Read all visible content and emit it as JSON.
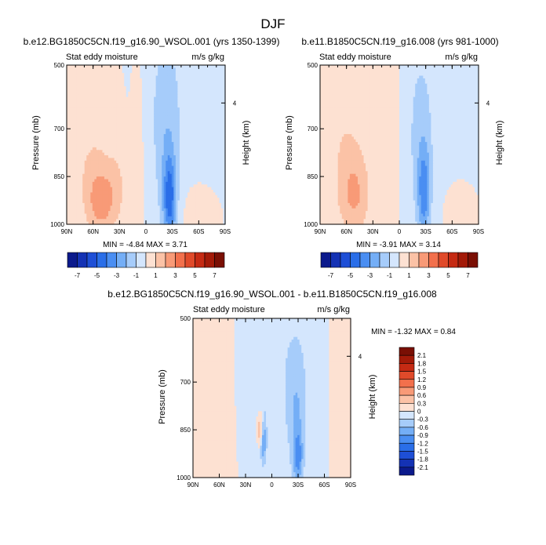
{
  "figure_title": "DJF",
  "chart_data": [
    {
      "type": "heatmap",
      "title": "b.e12.BG1850C5CN.f19_g16.90_WSOL.001 (yrs 1350-1399)",
      "subtitle_left": "Stat eddy moisture",
      "subtitle_right": "m/s g/kg",
      "xlabel": "",
      "ylabel": "Pressure (mb)",
      "ylabel_right": "Height (km)",
      "x_ticks": [
        "90N",
        "60N",
        "30N",
        "0",
        "30S",
        "60S",
        "90S"
      ],
      "x_range": [
        90,
        -90
      ],
      "y_ticks": [
        500,
        700,
        850,
        1000
      ],
      "y_range": [
        500,
        1000
      ],
      "y_right_ticks": [
        4
      ],
      "stats": "MIN =  -4.84   MAX =   3.71",
      "min": -4.84,
      "max": 3.71,
      "features": [
        {
          "lat": 65,
          "p": 690,
          "value": 0.5,
          "sx": 22,
          "sp": 170
        },
        {
          "lat": 50,
          "p": 930,
          "value": 1.6,
          "sx": 10,
          "sp": 60
        },
        {
          "lat": 55,
          "p": 900,
          "value": 1.2,
          "sx": 15,
          "sp": 110
        },
        {
          "lat": 32,
          "p": 880,
          "value": 0.8,
          "sx": 8,
          "sp": 90
        },
        {
          "lat": 80,
          "p": 620,
          "value": 0.3,
          "sx": 12,
          "sp": 100
        },
        {
          "lat": -27,
          "p": 920,
          "value": -3.8,
          "sx": 5,
          "sp": 90
        },
        {
          "lat": -24,
          "p": 760,
          "value": -1.5,
          "sx": 11,
          "sp": 220
        },
        {
          "lat": -45,
          "p": 580,
          "value": -0.3,
          "sx": 40,
          "sp": 220
        },
        {
          "lat": -15,
          "p": 550,
          "value": -0.3,
          "sx": 15,
          "sp": 200
        },
        {
          "lat": 8,
          "p": 700,
          "value": 0.35,
          "sx": 6,
          "sp": 250
        },
        {
          "lat": -55,
          "p": 960,
          "value": 0.4,
          "sx": 15,
          "sp": 60
        }
      ],
      "colorbar": {
        "labels": [
          "-7",
          "-5",
          "-3",
          "-1",
          "1",
          "3",
          "5",
          "7"
        ],
        "levels": [
          -7,
          -6,
          -5,
          -4,
          -3,
          -2,
          -1,
          0,
          1,
          2,
          3,
          4,
          5,
          6,
          7
        ],
        "colors": [
          "#0b1a8c",
          "#1432b4",
          "#1e4fd6",
          "#2a6ee8",
          "#4a8ef2",
          "#74aef6",
          "#a6ccfa",
          "#d4e6fd",
          "#fde1d2",
          "#fbc2a6",
          "#f89a77",
          "#f2704c",
          "#e04a2a",
          "#c52a13",
          "#a31a08",
          "#7a0f04"
        ]
      }
    },
    {
      "type": "heatmap",
      "title": "b.e11.B1850C5CN.f19_g16.008 (yrs 981-1000)",
      "subtitle_left": "Stat eddy moisture",
      "subtitle_right": "m/s g/kg",
      "xlabel": "",
      "ylabel": "Pressure (mb)",
      "ylabel_right": "Height (km)",
      "x_ticks": [
        "90N",
        "60N",
        "30N",
        "0",
        "30S",
        "60S",
        "90S"
      ],
      "x_range": [
        90,
        -90
      ],
      "y_ticks": [
        500,
        700,
        850,
        1000
      ],
      "y_range": [
        500,
        1000
      ],
      "y_right_ticks": [
        4
      ],
      "stats": "MIN =  -3.91   MAX =   3.14",
      "min": -3.91,
      "max": 3.14,
      "features": [
        {
          "lat": 60,
          "p": 700,
          "value": 0.5,
          "sx": 22,
          "sp": 170
        },
        {
          "lat": 50,
          "p": 920,
          "value": 1.3,
          "sx": 12,
          "sp": 80
        },
        {
          "lat": 55,
          "p": 860,
          "value": 0.9,
          "sx": 14,
          "sp": 120
        },
        {
          "lat": 80,
          "p": 640,
          "value": 0.3,
          "sx": 12,
          "sp": 100
        },
        {
          "lat": -28,
          "p": 900,
          "value": -3.0,
          "sx": 5,
          "sp": 100
        },
        {
          "lat": -24,
          "p": 740,
          "value": -1.2,
          "sx": 11,
          "sp": 220
        },
        {
          "lat": -50,
          "p": 600,
          "value": -0.3,
          "sx": 40,
          "sp": 220
        },
        {
          "lat": 5,
          "p": 640,
          "value": 0.35,
          "sx": 6,
          "sp": 250
        },
        {
          "lat": -68,
          "p": 950,
          "value": 0.4,
          "sx": 12,
          "sp": 60
        }
      ],
      "colorbar": {
        "labels": [
          "-7",
          "-5",
          "-3",
          "-1",
          "1",
          "3",
          "5",
          "7"
        ],
        "levels": [
          -7,
          -6,
          -5,
          -4,
          -3,
          -2,
          -1,
          0,
          1,
          2,
          3,
          4,
          5,
          6,
          7
        ],
        "colors": [
          "#0b1a8c",
          "#1432b4",
          "#1e4fd6",
          "#2a6ee8",
          "#4a8ef2",
          "#74aef6",
          "#a6ccfa",
          "#d4e6fd",
          "#fde1d2",
          "#fbc2a6",
          "#f89a77",
          "#f2704c",
          "#e04a2a",
          "#c52a13",
          "#a31a08",
          "#7a0f04"
        ]
      }
    },
    {
      "type": "heatmap",
      "title": "b.e12.BG1850C5CN.f19_g16.90_WSOL.001 - b.e11.B1850C5CN.f19_g16.008",
      "subtitle_left": "Stat eddy moisture",
      "subtitle_right": "m/s g/kg",
      "xlabel": "",
      "ylabel": "Pressure (mb)",
      "ylabel_right": "Height (km)",
      "x_ticks": [
        "90N",
        "60N",
        "30N",
        "0",
        "30S",
        "60S",
        "90S"
      ],
      "x_range": [
        90,
        -90
      ],
      "y_ticks": [
        500,
        700,
        850,
        1000
      ],
      "y_range": [
        500,
        1000
      ],
      "y_right_ticks": [
        4
      ],
      "stats": "MIN =  -1.32   MAX =   0.84",
      "min": -1.32,
      "max": 0.84,
      "features": [
        {
          "lat": 10,
          "p": 650,
          "value": -0.2,
          "sx": 22,
          "sp": 250
        },
        {
          "lat": -30,
          "p": 600,
          "value": -0.2,
          "sx": 20,
          "sp": 250
        },
        {
          "lat": 13,
          "p": 850,
          "value": 0.85,
          "sx": 2.5,
          "sp": 40
        },
        {
          "lat": 10,
          "p": 880,
          "value": -0.9,
          "sx": 2.5,
          "sp": 50
        },
        {
          "lat": -30,
          "p": 940,
          "value": -0.8,
          "sx": 4,
          "sp": 60
        },
        {
          "lat": -28,
          "p": 800,
          "value": -0.45,
          "sx": 7,
          "sp": 120
        },
        {
          "lat": 70,
          "p": 700,
          "value": 0.15,
          "sx": 22,
          "sp": 300
        },
        {
          "lat": -78,
          "p": 650,
          "value": 0.15,
          "sx": 8,
          "sp": 200
        }
      ],
      "colorbar": {
        "labels": [
          "2.1",
          "1.8",
          "1.5",
          "1.2",
          "0.9",
          "0.6",
          "0.3",
          "0",
          "-0.3",
          "-0.6",
          "-0.9",
          "-1.2",
          "-1.5",
          "-1.8",
          "-2.1"
        ],
        "levels": [
          -2.1,
          -1.8,
          -1.5,
          -1.2,
          -0.9,
          -0.6,
          -0.3,
          0,
          0.3,
          0.6,
          0.9,
          1.2,
          1.5,
          1.8,
          2.1
        ],
        "colors": [
          "#0b1a8c",
          "#1432b4",
          "#1e4fd6",
          "#2a6ee8",
          "#4a8ef2",
          "#74aef6",
          "#a6ccfa",
          "#d4e6fd",
          "#fde1d2",
          "#fbc2a6",
          "#f89a77",
          "#f2704c",
          "#e04a2a",
          "#c52a13",
          "#a31a08",
          "#7a0f04"
        ]
      }
    }
  ]
}
